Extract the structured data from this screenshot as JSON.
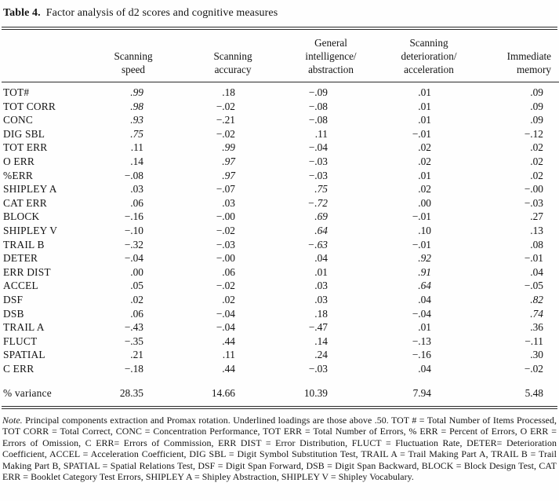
{
  "title": {
    "label": "Table 4.",
    "text": "Factor analysis of d2 scores and cognitive measures"
  },
  "table": {
    "columns": [
      "Scanning\nspeed",
      "Scanning\naccuracy",
      "General\nintelligence/\nabstraction",
      "Scanning\ndeterioration/\nacceleration",
      "Immediate\nmemory"
    ],
    "rows": [
      {
        "label": "TOT#",
        "values": [
          ".99",
          ".18",
          "−.09",
          ".01",
          ".09"
        ],
        "emphasis": [
          true,
          false,
          false,
          false,
          false
        ]
      },
      {
        "label": "TOT CORR",
        "values": [
          ".98",
          "−.02",
          "−.08",
          ".01",
          ".09"
        ],
        "emphasis": [
          true,
          false,
          false,
          false,
          false
        ]
      },
      {
        "label": "CONC",
        "values": [
          ".93",
          "−.21",
          "−.08",
          ".01",
          ".09"
        ],
        "emphasis": [
          true,
          false,
          false,
          false,
          false
        ]
      },
      {
        "label": "DIG SBL",
        "values": [
          ".75",
          "−.02",
          ".11",
          "−.01",
          "−.12"
        ],
        "emphasis": [
          true,
          false,
          false,
          false,
          false
        ]
      },
      {
        "label": "TOT ERR",
        "values": [
          ".11",
          ".99",
          "−.04",
          ".02",
          ".02"
        ],
        "emphasis": [
          false,
          true,
          false,
          false,
          false
        ]
      },
      {
        "label": "O ERR",
        "values": [
          ".14",
          ".97",
          "−.03",
          ".02",
          ".02"
        ],
        "emphasis": [
          false,
          true,
          false,
          false,
          false
        ]
      },
      {
        "label": "%ERR",
        "values": [
          "−.08",
          ".97",
          "−.03",
          ".01",
          ".02"
        ],
        "emphasis": [
          false,
          true,
          false,
          false,
          false
        ]
      },
      {
        "label": "SHIPLEY A",
        "values": [
          ".03",
          "−.07",
          ".75",
          ".02",
          "−.00"
        ],
        "emphasis": [
          false,
          false,
          true,
          false,
          false
        ]
      },
      {
        "label": "CAT ERR",
        "values": [
          ".06",
          ".03",
          "−.72",
          ".00",
          "−.03"
        ],
        "emphasis": [
          false,
          false,
          true,
          false,
          false
        ]
      },
      {
        "label": "BLOCK",
        "values": [
          "−.16",
          "−.00",
          ".69",
          "−.01",
          ".27"
        ],
        "emphasis": [
          false,
          false,
          true,
          false,
          false
        ]
      },
      {
        "label": "SHIPLEY V",
        "values": [
          "−.10",
          "−.02",
          ".64",
          ".10",
          ".13"
        ],
        "emphasis": [
          false,
          false,
          true,
          false,
          false
        ]
      },
      {
        "label": "TRAIL B",
        "values": [
          "−.32",
          "−.03",
          "−.63",
          "−.01",
          ".08"
        ],
        "emphasis": [
          false,
          false,
          true,
          false,
          false
        ]
      },
      {
        "label": "DETER",
        "values": [
          "−.04",
          "−.00",
          ".04",
          ".92",
          "−.01"
        ],
        "emphasis": [
          false,
          false,
          false,
          true,
          false
        ]
      },
      {
        "label": "ERR DIST",
        "values": [
          ".00",
          ".06",
          ".01",
          ".91",
          ".04"
        ],
        "emphasis": [
          false,
          false,
          false,
          true,
          false
        ]
      },
      {
        "label": "ACCEL",
        "values": [
          ".05",
          "−.02",
          ".03",
          ".64",
          "−.05"
        ],
        "emphasis": [
          false,
          false,
          false,
          true,
          false
        ]
      },
      {
        "label": "DSF",
        "values": [
          ".02",
          ".02",
          ".03",
          ".04",
          ".82"
        ],
        "emphasis": [
          false,
          false,
          false,
          false,
          true
        ]
      },
      {
        "label": "DSB",
        "values": [
          ".06",
          "−.04",
          ".18",
          "−.04",
          ".74"
        ],
        "emphasis": [
          false,
          false,
          false,
          false,
          true
        ]
      },
      {
        "label": "TRAIL A",
        "values": [
          "−.43",
          "−.04",
          "−.47",
          ".01",
          ".36"
        ],
        "emphasis": [
          false,
          false,
          false,
          false,
          false
        ]
      },
      {
        "label": "FLUCT",
        "values": [
          "−.35",
          ".44",
          ".14",
          "−.13",
          "−.11"
        ],
        "emphasis": [
          false,
          false,
          false,
          false,
          false
        ]
      },
      {
        "label": "SPATIAL",
        "values": [
          ".21",
          ".11",
          ".24",
          "−.16",
          ".30"
        ],
        "emphasis": [
          false,
          false,
          false,
          false,
          false
        ]
      },
      {
        "label": "C ERR",
        "values": [
          "−.18",
          ".44",
          "−.03",
          ".04",
          "−.02"
        ],
        "emphasis": [
          false,
          false,
          false,
          false,
          false
        ]
      }
    ],
    "footer": {
      "label": "% variance",
      "values": [
        "28.35",
        "14.66",
        "10.39",
        "7.94",
        "5.48"
      ]
    }
  },
  "note": {
    "label": "Note.",
    "text": "Principal components extraction and Promax rotation. Underlined loadings are those above .50. TOT # = Total Number of Items Processed, TOT CORR = Total Correct, CONC = Concentration Performance, TOT ERR = Total Number of Errors, % ERR = Percent of Errors, O ERR = Errors of Omission, C ERR= Errors of Commission, ERR DIST = Error Distribution, FLUCT = Fluctuation Rate, DETER= Deterioration Coefficient, ACCEL = Acceleration Coefficient, DIG SBL = Digit Symbol Substitution Test, TRAIL A = Trail Making Part A, TRAIL B = Trail Making Part B, SPATIAL = Spatial Relations Test, DSF = Digit Span Forward, DSB = Digit Span Backward, BLOCK = Block Design Test, CAT ERR = Booklet Category Test Errors, SHIPLEY A = Shipley Abstraction, SHIPLEY V = Shipley Vocabulary."
  },
  "chart_data": {
    "type": "table",
    "title": "Table 4. Factor analysis of d2 scores and cognitive measures",
    "columns": [
      "Scanning speed",
      "Scanning accuracy",
      "General intelligence/abstraction",
      "Scanning deterioration/acceleration",
      "Immediate memory"
    ],
    "percent_variance": [
      28.35,
      14.66,
      10.39,
      7.94,
      5.48
    ]
  }
}
